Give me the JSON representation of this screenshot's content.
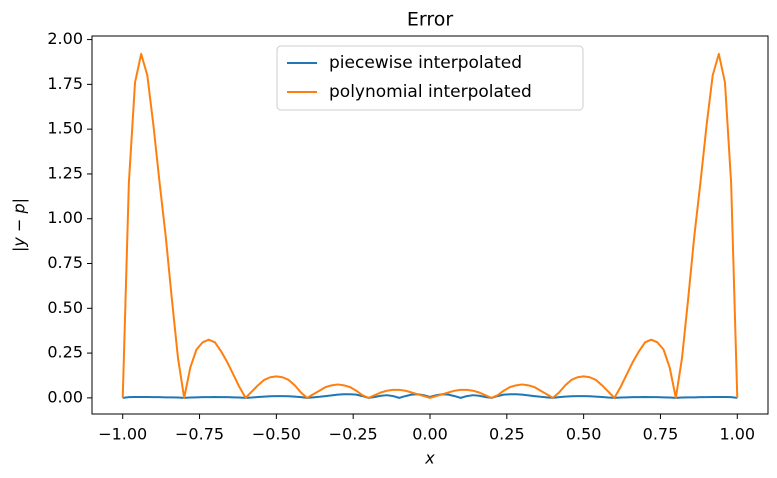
{
  "chart_data": {
    "type": "line",
    "title": "Error",
    "x_label": "x",
    "y_label": "|y − p|",
    "x": [
      -1,
      -0.98,
      -0.96,
      -0.94,
      -0.92,
      -0.9,
      -0.88,
      -0.86,
      -0.84,
      -0.82,
      -0.8,
      -0.78,
      -0.76,
      -0.74,
      -0.72,
      -0.7,
      -0.68,
      -0.66,
      -0.64,
      -0.62,
      -0.6,
      -0.58,
      -0.56,
      -0.54,
      -0.52,
      -0.5,
      -0.48,
      -0.46,
      -0.44,
      -0.42,
      -0.4,
      -0.38,
      -0.36,
      -0.34,
      -0.32,
      -0.3,
      -0.28,
      -0.26,
      -0.24,
      -0.22,
      -0.2,
      -0.18,
      -0.16,
      -0.14,
      -0.12,
      -0.1,
      -0.08,
      -0.06,
      -0.04,
      -0.02,
      0,
      0.02,
      0.04,
      0.06,
      0.08,
      0.1,
      0.12,
      0.14,
      0.16,
      0.18,
      0.2,
      0.22,
      0.24,
      0.26,
      0.28,
      0.3,
      0.32,
      0.34,
      0.36,
      0.38,
      0.4,
      0.42,
      0.44,
      0.46,
      0.48,
      0.5,
      0.52,
      0.54,
      0.56,
      0.58,
      0.6,
      0.62,
      0.64,
      0.66,
      0.68,
      0.7,
      0.72,
      0.74,
      0.76,
      0.78,
      0.8,
      0.82,
      0.84,
      0.86,
      0.88,
      0.9,
      0.92,
      0.94,
      0.96,
      0.98,
      1
    ],
    "series": [
      {
        "name": "piecewise interpolated",
        "color": "#1f77b4",
        "values": [
          0,
          0.004,
          0.005,
          0.005,
          0.005,
          0.004,
          0.004,
          0.003,
          0.003,
          0.002,
          0,
          0.002,
          0.003,
          0.004,
          0.004,
          0.005,
          0.004,
          0.004,
          0.003,
          0.002,
          0,
          0.002,
          0.005,
          0.007,
          0.009,
          0.01,
          0.01,
          0.009,
          0.007,
          0.004,
          0,
          0.003,
          0.006,
          0.01,
          0.014,
          0.018,
          0.02,
          0.02,
          0.018,
          0.01,
          0,
          0.005,
          0.012,
          0.015,
          0.01,
          0,
          0.01,
          0.018,
          0.02,
          0.015,
          0.005,
          0.015,
          0.02,
          0.018,
          0.01,
          0,
          0.01,
          0.015,
          0.012,
          0.005,
          0,
          0.01,
          0.018,
          0.02,
          0.02,
          0.018,
          0.014,
          0.01,
          0.006,
          0.003,
          0,
          0.004,
          0.007,
          0.009,
          0.01,
          0.01,
          0.009,
          0.007,
          0.005,
          0.002,
          0,
          0.002,
          0.003,
          0.004,
          0.004,
          0.005,
          0.004,
          0.004,
          0.003,
          0.002,
          0,
          0.002,
          0.003,
          0.003,
          0.004,
          0.004,
          0.005,
          0.005,
          0.005,
          0.004,
          0
        ]
      },
      {
        "name": "polynomial interpolated",
        "color": "#ff7f0e",
        "values": [
          0,
          1.2,
          1.76,
          1.92,
          1.8,
          1.52,
          1.2,
          0.9,
          0.55,
          0.22,
          0,
          0.17,
          0.27,
          0.31,
          0.325,
          0.31,
          0.26,
          0.2,
          0.13,
          0.06,
          0,
          0.035,
          0.07,
          0.1,
          0.115,
          0.12,
          0.115,
          0.1,
          0.07,
          0.03,
          0,
          0.02,
          0.04,
          0.06,
          0.07,
          0.075,
          0.07,
          0.06,
          0.04,
          0.015,
          0,
          0.015,
          0.03,
          0.04,
          0.045,
          0.045,
          0.04,
          0.03,
          0.02,
          0.01,
          0,
          0.01,
          0.02,
          0.03,
          0.04,
          0.045,
          0.045,
          0.04,
          0.03,
          0.015,
          0,
          0.015,
          0.04,
          0.06,
          0.07,
          0.075,
          0.07,
          0.06,
          0.04,
          0.02,
          0,
          0.03,
          0.07,
          0.1,
          0.115,
          0.12,
          0.115,
          0.1,
          0.07,
          0.035,
          0,
          0.06,
          0.13,
          0.2,
          0.26,
          0.31,
          0.325,
          0.31,
          0.27,
          0.17,
          0,
          0.22,
          0.55,
          0.9,
          1.2,
          1.52,
          1.8,
          1.92,
          1.76,
          1.2,
          0
        ]
      }
    ],
    "xlim": [
      -1.1,
      1.1
    ],
    "ylim": [
      -0.09,
      2.02
    ],
    "xticks": [
      {
        "value": -1,
        "label": "−1.00"
      },
      {
        "value": -0.75,
        "label": "−0.75"
      },
      {
        "value": -0.5,
        "label": "−0.50"
      },
      {
        "value": -0.25,
        "label": "−0.25"
      },
      {
        "value": 0,
        "label": "0.00"
      },
      {
        "value": 0.25,
        "label": "0.25"
      },
      {
        "value": 0.5,
        "label": "0.50"
      },
      {
        "value": 0.75,
        "label": "0.75"
      },
      {
        "value": 1,
        "label": "1.00"
      }
    ],
    "yticks": [
      {
        "value": 0,
        "label": "0.00"
      },
      {
        "value": 0.25,
        "label": "0.25"
      },
      {
        "value": 0.5,
        "label": "0.50"
      },
      {
        "value": 0.75,
        "label": "0.75"
      },
      {
        "value": 1,
        "label": "1.00"
      },
      {
        "value": 1.25,
        "label": "1.25"
      },
      {
        "value": 1.5,
        "label": "1.50"
      },
      {
        "value": 1.75,
        "label": "1.75"
      },
      {
        "value": 2,
        "label": "2.00"
      }
    ],
    "legend": "upper center",
    "grid": false
  }
}
